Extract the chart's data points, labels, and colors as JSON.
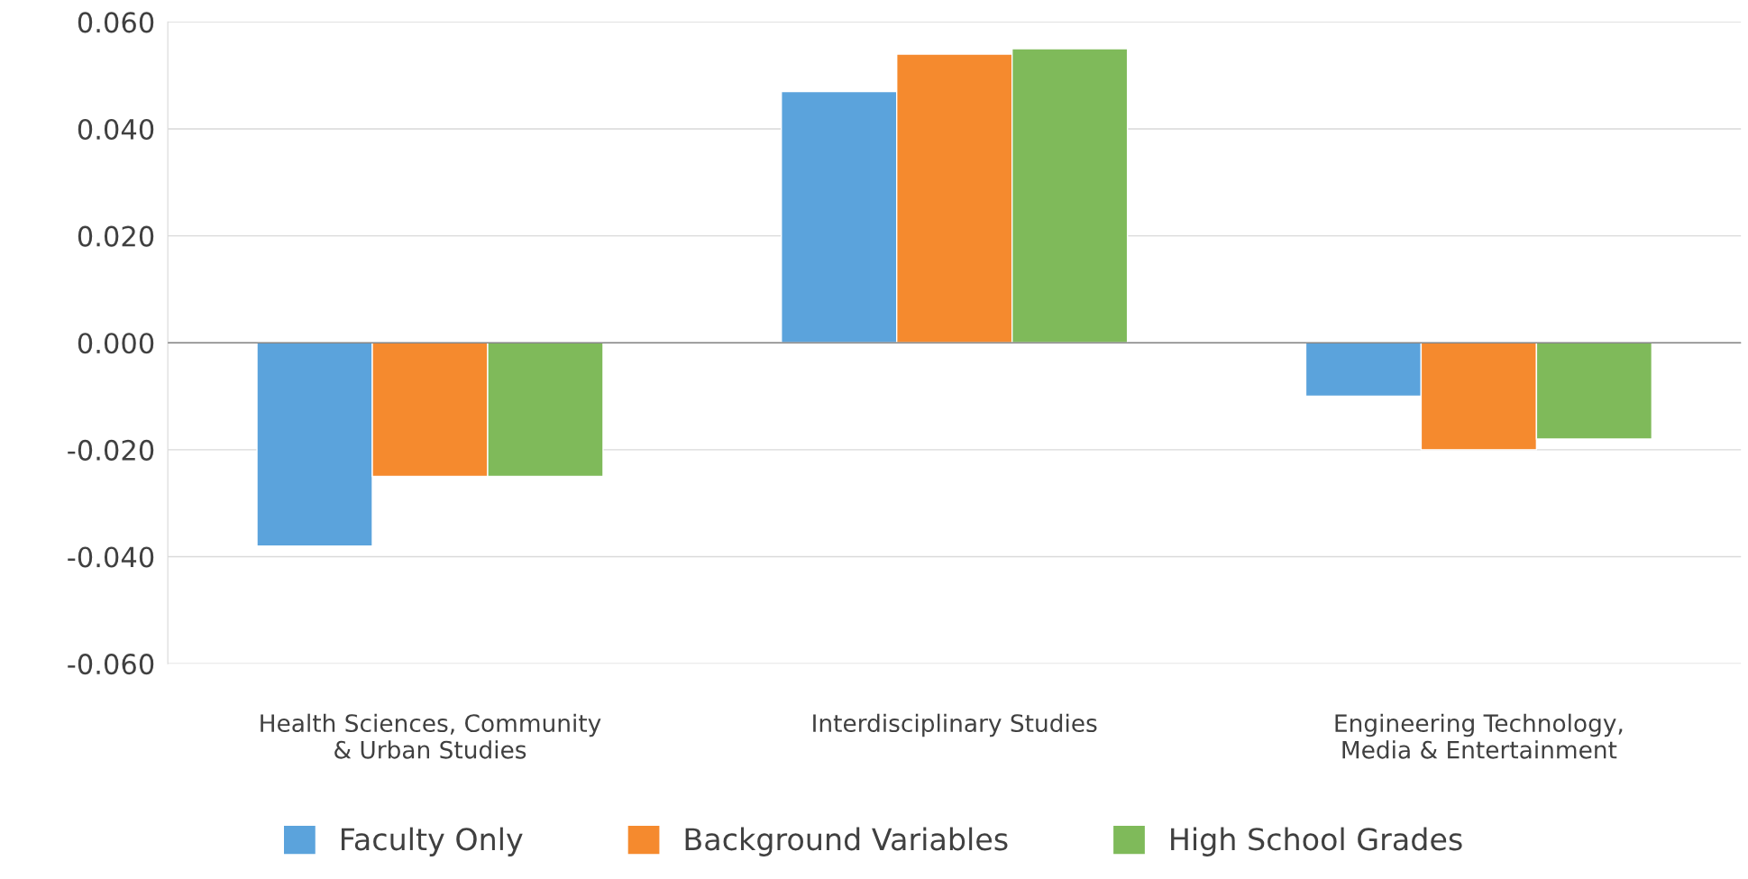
{
  "chart_data": {
    "type": "bar",
    "categories": [
      "Health Sciences, Community\n& Urban Studies",
      "Interdisciplinary Studies",
      "Engineering Technology,\nMedia & Entertainment"
    ],
    "series": [
      {
        "name": "Faculty Only",
        "color": "#5ba3dc",
        "values": [
          -0.038,
          0.047,
          -0.01
        ]
      },
      {
        "name": "Background Variables",
        "color": "#f58a2e",
        "values": [
          -0.025,
          0.054,
          -0.02
        ]
      },
      {
        "name": "High School Grades",
        "color": "#7fba5a",
        "values": [
          -0.025,
          0.055,
          -0.018
        ]
      }
    ],
    "ylim": [
      -0.06,
      0.06
    ],
    "yticks": [
      {
        "value": -0.06,
        "label": "-0.060"
      },
      {
        "value": -0.04,
        "label": "-0.040"
      },
      {
        "value": -0.02,
        "label": "-0.020"
      },
      {
        "value": 0,
        "label": "0.000"
      },
      {
        "value": 0.02,
        "label": "0.020"
      },
      {
        "value": 0.04,
        "label": "0.040"
      },
      {
        "value": 0.06,
        "label": "0.060"
      }
    ],
    "grid": "y",
    "legend": "bottom"
  }
}
